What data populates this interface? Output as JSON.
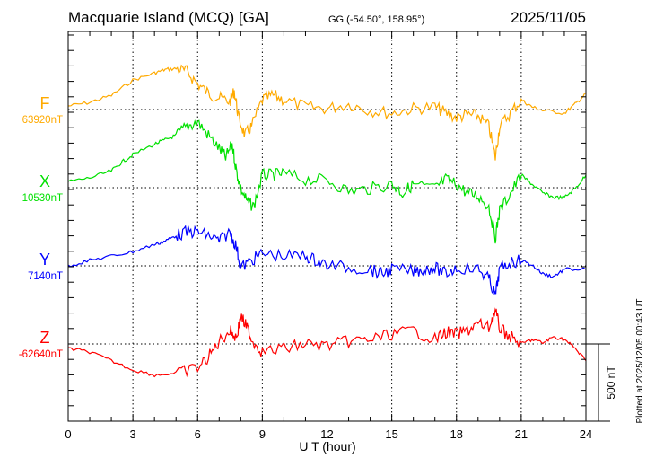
{
  "chart_data": {
    "type": "line",
    "title": "Macquarie Island (MCQ)  [GA]",
    "coords": "GG (-54.50°, 158.95°)",
    "date": "2025/11/05",
    "xlabel": "U T (hour)",
    "xlim": [
      0,
      24
    ],
    "x_ticks": [
      "0",
      "3",
      "6",
      "9",
      "12",
      "15",
      "18",
      "21",
      "24"
    ],
    "scale_label": "500 nT",
    "scale_nT": 500,
    "plotted_note": "Plotted at 2025/12/05 00:43 UT",
    "grid": true,
    "series": [
      {
        "name": "F",
        "baseline_label": "63920nT",
        "color": "#ffaa00",
        "x": [
          0,
          1,
          2,
          3,
          4,
          4.5,
          5,
          5.5,
          6,
          6.5,
          7,
          7.5,
          7.7,
          7.9,
          8.2,
          8.5,
          9,
          9.5,
          10,
          11,
          12,
          13,
          14,
          15,
          16,
          17,
          17.5,
          18,
          18.5,
          19,
          19.5,
          19.8,
          20,
          20.5,
          21,
          21.5,
          22,
          23,
          23.5,
          24
        ],
        "values": [
          23,
          46,
          92,
          190,
          236,
          259,
          265,
          247,
          167,
          104,
          75,
          52,
          121,
          -52,
          -167,
          -109,
          63,
          92,
          63,
          17,
          6,
          35,
          -6,
          -23,
          6,
          17,
          -23,
          -52,
          -35,
          -40,
          -109,
          -310,
          -109,
          -23,
          63,
          17,
          -6,
          -23,
          35,
          104
        ]
      },
      {
        "name": "X",
        "baseline_label": "10530nT",
        "color": "#00e000",
        "x": [
          0,
          1,
          2,
          2.5,
          3,
          4,
          4.5,
          5,
          5.5,
          6,
          6.5,
          7,
          7.3,
          7.6,
          7.8,
          8,
          8.3,
          8.6,
          9,
          9.5,
          10,
          11,
          12,
          13,
          14,
          15,
          15.5,
          16,
          17,
          17.5,
          18,
          18.5,
          19,
          19.5,
          19.8,
          20,
          20.5,
          21,
          21.5,
          22,
          22.5,
          23,
          23.5,
          24
        ],
        "values": [
          40,
          63,
          109,
          166,
          213,
          282,
          310,
          339,
          397,
          425,
          339,
          253,
          195,
          282,
          109,
          -6,
          -92,
          -121,
          81,
          81,
          92,
          52,
          52,
          -23,
          -6,
          23,
          -35,
          23,
          -6,
          52,
          23,
          -35,
          -52,
          -121,
          -322,
          -150,
          -35,
          81,
          23,
          -35,
          -63,
          -63,
          -6,
          81
        ]
      },
      {
        "name": "Y",
        "baseline_label": "7140nT",
        "color": "#0000ff",
        "x": [
          0,
          1,
          2,
          3,
          4,
          4.5,
          5,
          5.5,
          6,
          6.5,
          7,
          7.5,
          7.8,
          8,
          8.5,
          9,
          10,
          11,
          11.5,
          12,
          13,
          14,
          14.5,
          15,
          16,
          16.5,
          17,
          17.5,
          18,
          19,
          19.5,
          19.8,
          20,
          20.5,
          21,
          21.5,
          22,
          22.5,
          23,
          24
        ],
        "values": [
          0,
          35,
          63,
          92,
          138,
          161,
          196,
          219,
          219,
          196,
          161,
          219,
          121,
          -12,
          35,
          81,
          63,
          63,
          35,
          6,
          -12,
          -23,
          -52,
          -23,
          -35,
          -23,
          -12,
          -52,
          -12,
          -23,
          -81,
          -196,
          -23,
          23,
          35,
          6,
          -52,
          -69,
          -23,
          -23
        ]
      },
      {
        "name": "Z",
        "baseline_label": "-62640nT",
        "color": "#ff0000",
        "x": [
          0,
          1,
          2,
          3,
          4,
          5,
          6,
          6.5,
          7,
          7.5,
          7.8,
          8,
          8.3,
          8.5,
          9,
          10,
          11,
          12,
          13,
          14,
          15,
          16,
          17,
          17.5,
          18,
          18.5,
          19,
          19.5,
          19.8,
          20,
          20.5,
          21,
          21.5,
          22,
          22.5,
          23,
          23.5,
          24
        ],
        "values": [
          -29,
          -52,
          -109,
          -167,
          -201,
          -190,
          -155,
          -86,
          17,
          86,
          40,
          178,
          104,
          29,
          -52,
          -29,
          0,
          -12,
          17,
          29,
          63,
          86,
          29,
          75,
          63,
          86,
          132,
          104,
          218,
          104,
          46,
          0,
          29,
          6,
          46,
          29,
          -29,
          -109
        ]
      }
    ]
  }
}
